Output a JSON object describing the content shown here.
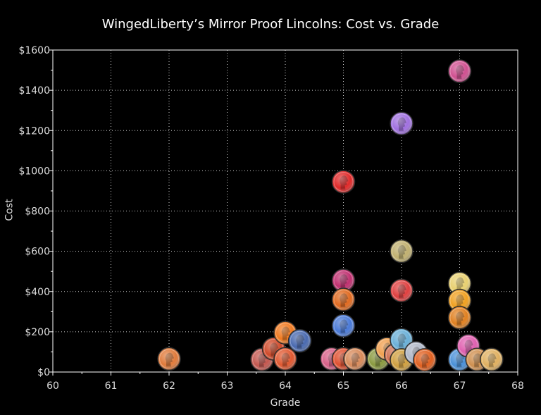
{
  "chart_data": {
    "type": "scatter",
    "title": "WingedLiberty’s Mirror Proof Lincolns:  Cost vs. Grade",
    "xlabel": "Grade",
    "ylabel": "Cost",
    "xlim": [
      60,
      68
    ],
    "ylim": [
      0,
      1600
    ],
    "x_ticks": [
      "60",
      "61",
      "62",
      "63",
      "64",
      "65",
      "66",
      "67",
      "68"
    ],
    "y_ticks": [
      "$0",
      "$200",
      "$400",
      "$600",
      "$800",
      "$1000",
      "$1200",
      "$1400",
      "$1600"
    ],
    "grid": true,
    "marker": "coin-icon",
    "points": [
      {
        "x": 62.0,
        "y": 65,
        "color": "#e07a3a"
      },
      {
        "x": 63.6,
        "y": 62,
        "color": "#c4574f"
      },
      {
        "x": 63.8,
        "y": 115,
        "color": "#d04a2a"
      },
      {
        "x": 64.0,
        "y": 195,
        "color": "#f07a20"
      },
      {
        "x": 64.0,
        "y": 65,
        "color": "#e05830"
      },
      {
        "x": 64.25,
        "y": 155,
        "color": "#4a6ab0"
      },
      {
        "x": 64.8,
        "y": 65,
        "color": "#d86088"
      },
      {
        "x": 65.0,
        "y": 945,
        "color": "#e02a2a"
      },
      {
        "x": 65.0,
        "y": 455,
        "color": "#c03070"
      },
      {
        "x": 65.0,
        "y": 360,
        "color": "#e06a20"
      },
      {
        "x": 65.0,
        "y": 230,
        "color": "#4a7ad8"
      },
      {
        "x": 65.0,
        "y": 65,
        "color": "#e05030"
      },
      {
        "x": 65.2,
        "y": 65,
        "color": "#d88a5a"
      },
      {
        "x": 65.6,
        "y": 65,
        "color": "#8a9a40"
      },
      {
        "x": 65.75,
        "y": 115,
        "color": "#f0a050"
      },
      {
        "x": 65.9,
        "y": 85,
        "color": "#d07050"
      },
      {
        "x": 66.0,
        "y": 1235,
        "color": "#a070e0"
      },
      {
        "x": 66.0,
        "y": 600,
        "color": "#c0b070"
      },
      {
        "x": 66.0,
        "y": 405,
        "color": "#e04040"
      },
      {
        "x": 66.0,
        "y": 160,
        "color": "#6ab0d8"
      },
      {
        "x": 66.0,
        "y": 60,
        "color": "#d0a040"
      },
      {
        "x": 66.25,
        "y": 95,
        "color": "#b0b8c8"
      },
      {
        "x": 66.4,
        "y": 60,
        "color": "#e06020"
      },
      {
        "x": 67.0,
        "y": 1495,
        "color": "#d05090"
      },
      {
        "x": 67.0,
        "y": 440,
        "color": "#e8d070"
      },
      {
        "x": 67.0,
        "y": 355,
        "color": "#f0a020"
      },
      {
        "x": 67.0,
        "y": 270,
        "color": "#e08020"
      },
      {
        "x": 67.0,
        "y": 62,
        "color": "#4a90d8"
      },
      {
        "x": 67.15,
        "y": 130,
        "color": "#e060b0"
      },
      {
        "x": 67.3,
        "y": 62,
        "color": "#d09050"
      },
      {
        "x": 67.55,
        "y": 62,
        "color": "#e0b060"
      }
    ]
  }
}
